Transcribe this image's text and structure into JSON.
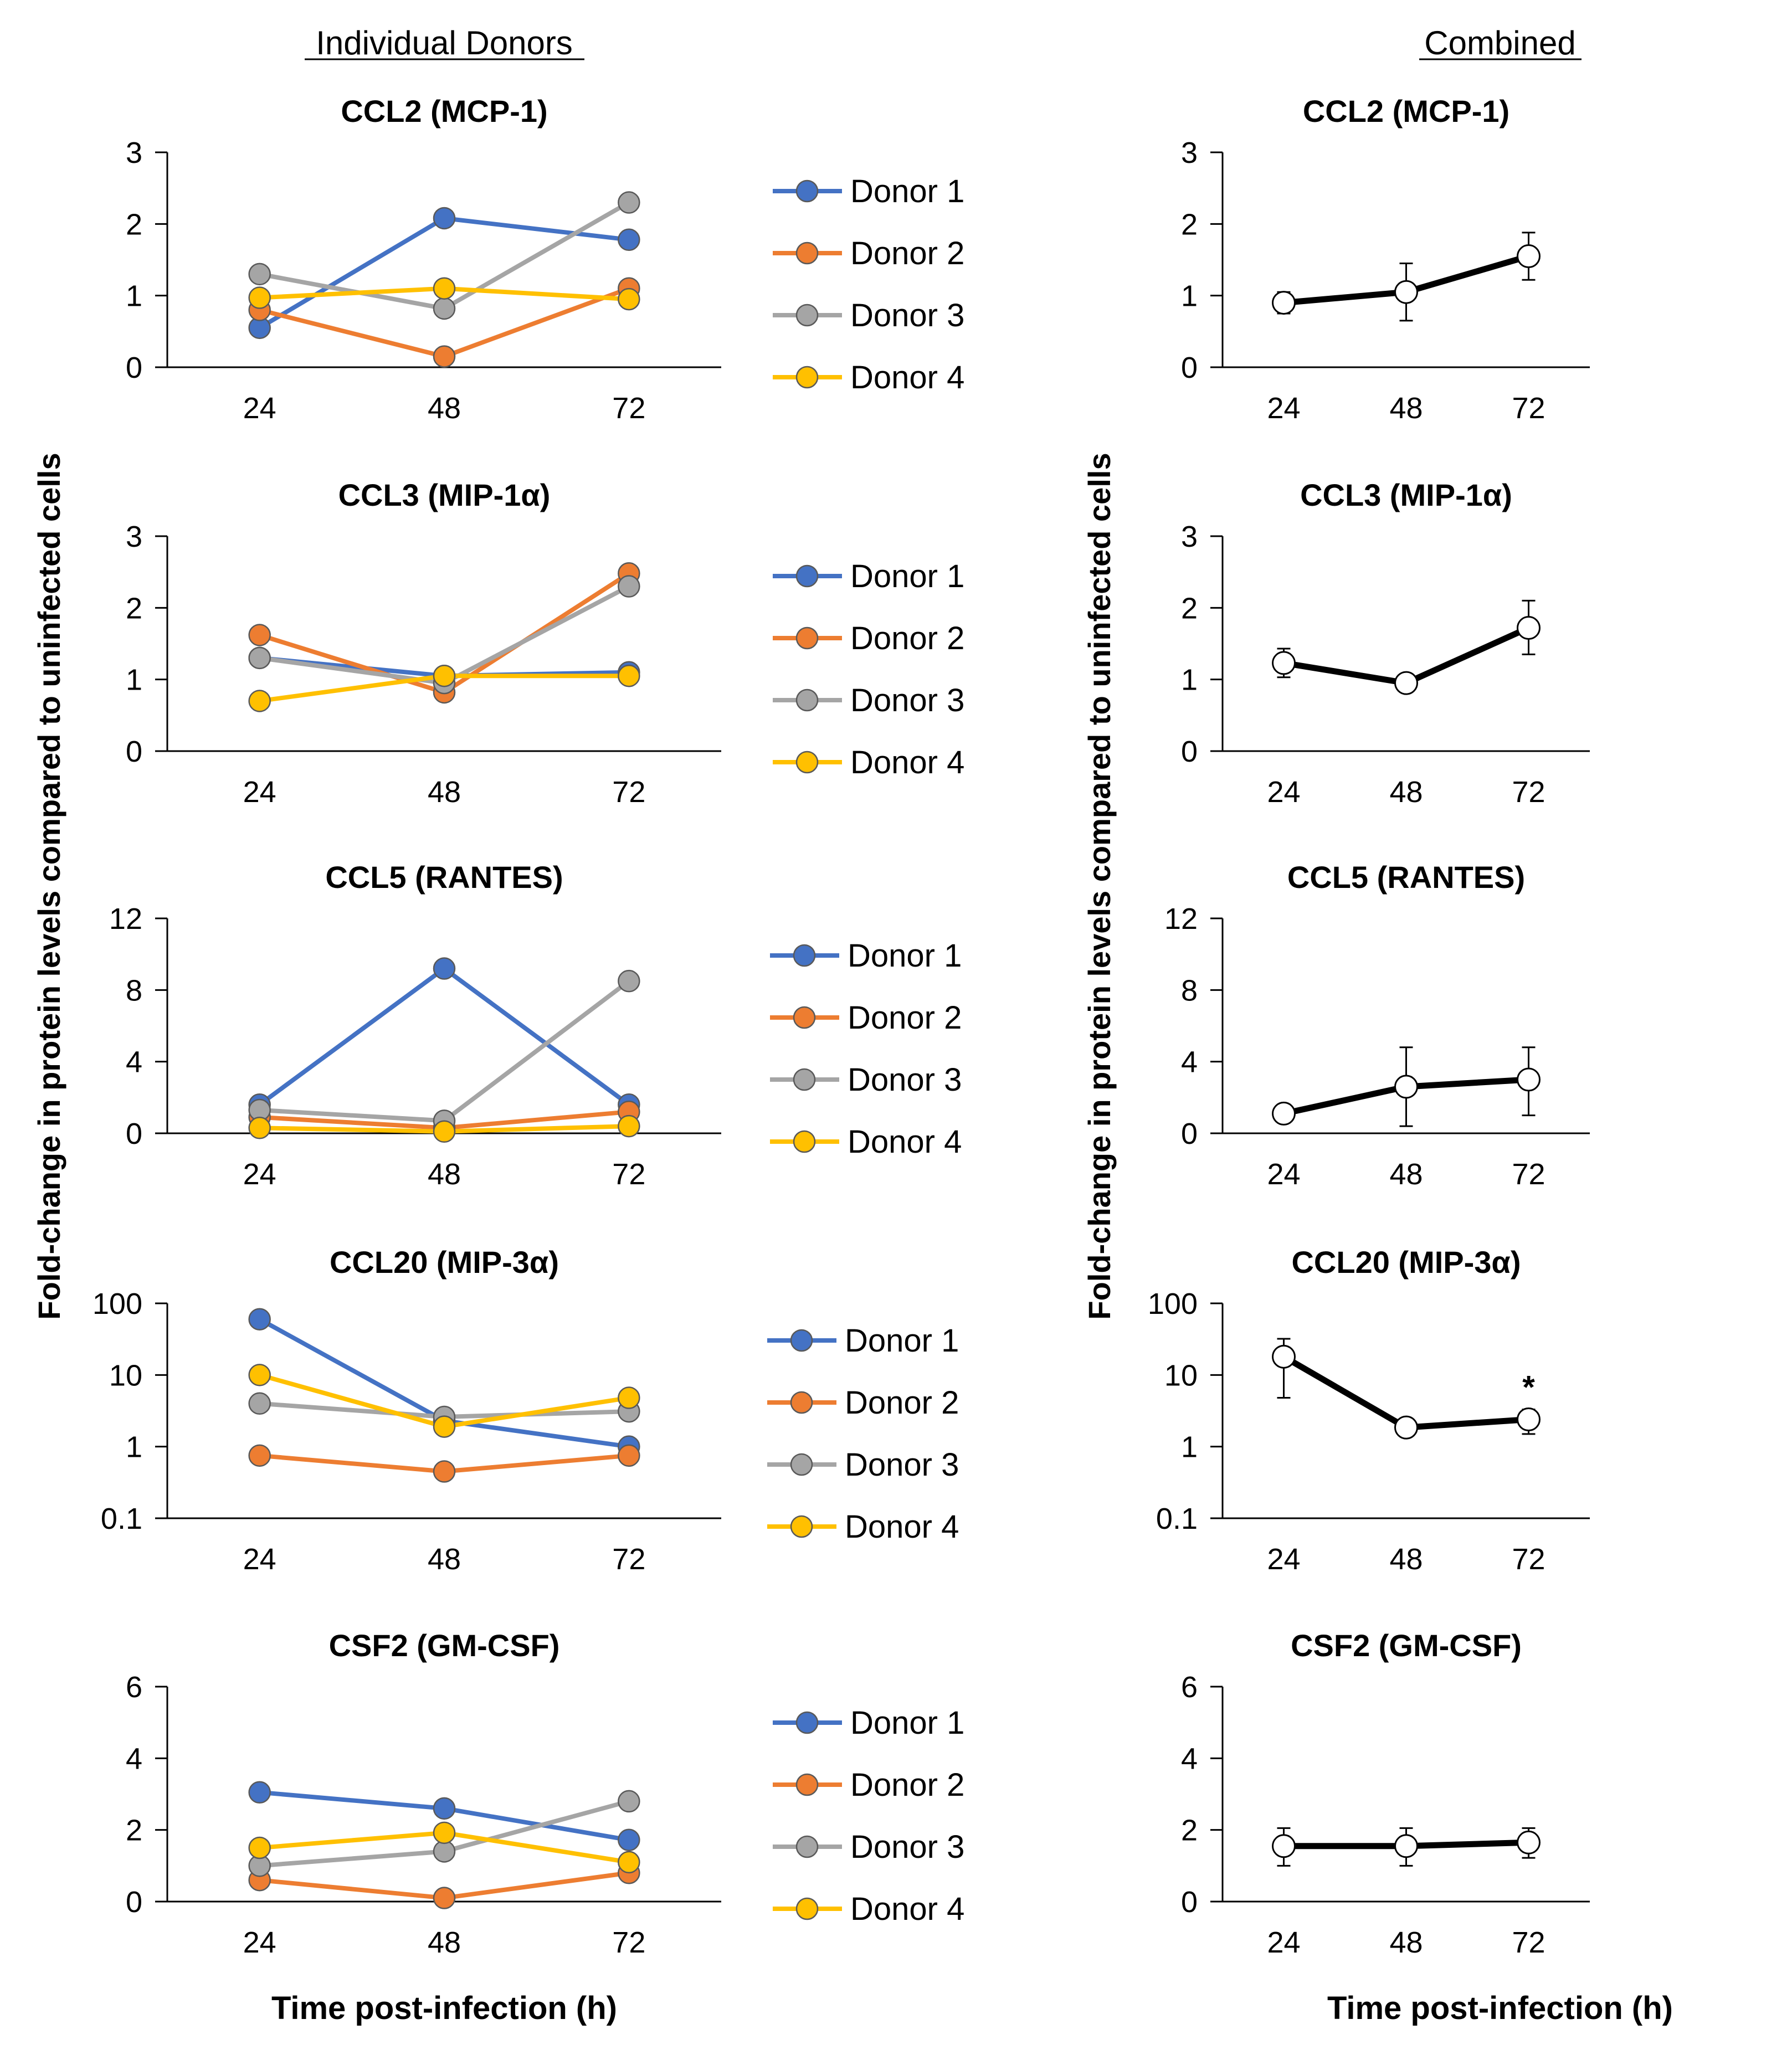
{
  "figure": {
    "left_header": "Individual Donors",
    "right_header": "Combined",
    "left_ylabel": "Fold-change in protein levels compared to uninfected cells",
    "right_ylabel": "Fold-change in protein levels compared to uninfected cells",
    "left_xlabel": "Time post-infection (h)",
    "right_xlabel": "Time post-infection (h)"
  },
  "colors": {
    "donor1": "#4472C4",
    "donor2": "#ED7D31",
    "donor3": "#A5A5A5",
    "donor4": "#FFC000",
    "combined_line": "#000000",
    "combined_marker_fill": "#ffffff",
    "axis": "#000000",
    "text": "#000000"
  },
  "chart_data": [
    {
      "type": "line",
      "panel": "individual",
      "title": "CCL2 (MCP-1)",
      "categories": [
        "24",
        "48",
        "72"
      ],
      "scale": "linear",
      "ylim": [
        0,
        3
      ],
      "yticks": [
        0,
        1,
        2,
        3
      ],
      "series": [
        {
          "name": "Donor 1",
          "values": [
            0.55,
            2.08,
            1.78
          ]
        },
        {
          "name": "Donor 2",
          "values": [
            0.8,
            0.15,
            1.1
          ]
        },
        {
          "name": "Donor 3",
          "values": [
            1.3,
            0.82,
            2.3
          ]
        },
        {
          "name": "Donor 4",
          "values": [
            0.97,
            1.1,
            0.95
          ]
        }
      ]
    },
    {
      "type": "line",
      "panel": "combined",
      "title": "CCL2 (MCP-1)",
      "categories": [
        "24",
        "48",
        "72"
      ],
      "scale": "linear",
      "ylim": [
        0,
        3
      ],
      "yticks": [
        0,
        1,
        2,
        3
      ],
      "series": [
        {
          "name": "Combined",
          "values": [
            0.9,
            1.05,
            1.55
          ],
          "err_low": [
            0.75,
            0.65,
            1.22
          ],
          "err_high": [
            1.05,
            1.45,
            1.88
          ]
        }
      ]
    },
    {
      "type": "line",
      "panel": "individual",
      "title": "CCL3 (MIP-1α)",
      "categories": [
        "24",
        "48",
        "72"
      ],
      "scale": "linear",
      "ylim": [
        0,
        3
      ],
      "yticks": [
        0,
        1,
        2,
        3
      ],
      "series": [
        {
          "name": "Donor 1",
          "values": [
            1.3,
            1.05,
            1.1
          ]
        },
        {
          "name": "Donor 2",
          "values": [
            1.62,
            0.82,
            2.48
          ]
        },
        {
          "name": "Donor 3",
          "values": [
            1.3,
            0.95,
            2.3
          ]
        },
        {
          "name": "Donor 4",
          "values": [
            0.7,
            1.05,
            1.05
          ]
        }
      ]
    },
    {
      "type": "line",
      "panel": "combined",
      "title": "CCL3 (MIP-1α)",
      "categories": [
        "24",
        "48",
        "72"
      ],
      "scale": "linear",
      "ylim": [
        0,
        3
      ],
      "yticks": [
        0,
        1,
        2,
        3
      ],
      "series": [
        {
          "name": "Combined",
          "values": [
            1.23,
            0.95,
            1.72
          ],
          "err_low": [
            1.03,
            0.88,
            1.35
          ],
          "err_high": [
            1.43,
            1.02,
            2.1
          ]
        }
      ]
    },
    {
      "type": "line",
      "panel": "individual",
      "title": "CCL5 (RANTES)",
      "categories": [
        "24",
        "48",
        "72"
      ],
      "scale": "linear",
      "ylim": [
        0,
        12
      ],
      "yticks": [
        0,
        4,
        8,
        12
      ],
      "series": [
        {
          "name": "Donor 1",
          "values": [
            1.6,
            9.2,
            1.6
          ]
        },
        {
          "name": "Donor 2",
          "values": [
            0.9,
            0.3,
            1.2
          ]
        },
        {
          "name": "Donor 3",
          "values": [
            1.3,
            0.7,
            8.5
          ]
        },
        {
          "name": "Donor 4",
          "values": [
            0.3,
            0.1,
            0.4
          ]
        }
      ]
    },
    {
      "type": "line",
      "panel": "combined",
      "title": "CCL5 (RANTES)",
      "categories": [
        "24",
        "48",
        "72"
      ],
      "scale": "linear",
      "ylim": [
        0,
        12
      ],
      "yticks": [
        0,
        4,
        8,
        12
      ],
      "series": [
        {
          "name": "Combined",
          "values": [
            1.1,
            2.6,
            3.0
          ],
          "err_low": [
            0.85,
            0.4,
            1.0
          ],
          "err_high": [
            1.35,
            4.8,
            4.8
          ]
        }
      ]
    },
    {
      "type": "line",
      "panel": "individual",
      "title": "CCL20 (MIP-3α)",
      "categories": [
        "24",
        "48",
        "72"
      ],
      "scale": "log",
      "ylim": [
        0.1,
        100
      ],
      "yticks": [
        0.1,
        1,
        10,
        100
      ],
      "ytick_labels": [
        "0.1",
        "1",
        "10",
        "100"
      ],
      "series": [
        {
          "name": "Donor 1",
          "values": [
            60,
            2.3,
            1.0
          ]
        },
        {
          "name": "Donor 2",
          "values": [
            0.75,
            0.45,
            0.75
          ]
        },
        {
          "name": "Donor 3",
          "values": [
            4.0,
            2.6,
            3.1
          ]
        },
        {
          "name": "Donor 4",
          "values": [
            10,
            1.9,
            4.8
          ]
        }
      ]
    },
    {
      "type": "line",
      "panel": "combined",
      "title": "CCL20 (MIP-3α)",
      "categories": [
        "24",
        "48",
        "72"
      ],
      "scale": "log",
      "ylim": [
        0.1,
        100
      ],
      "yticks": [
        0.1,
        1,
        10,
        100
      ],
      "ytick_labels": [
        "0.1",
        "1",
        "10",
        "100"
      ],
      "annotation": {
        "category": "72",
        "text": "*"
      },
      "series": [
        {
          "name": "Combined",
          "values": [
            18,
            1.85,
            2.4
          ],
          "err_low": [
            4.8,
            1.7,
            1.5
          ],
          "err_high": [
            32,
            2.0,
            3.3
          ]
        }
      ]
    },
    {
      "type": "line",
      "panel": "individual",
      "title": "CSF2 (GM-CSF)",
      "categories": [
        "24",
        "48",
        "72"
      ],
      "scale": "linear",
      "ylim": [
        0,
        6
      ],
      "yticks": [
        0,
        2,
        4,
        6
      ],
      "series": [
        {
          "name": "Donor 1",
          "values": [
            3.05,
            2.6,
            1.72
          ]
        },
        {
          "name": "Donor 2",
          "values": [
            0.6,
            0.1,
            0.8
          ]
        },
        {
          "name": "Donor 3",
          "values": [
            1.0,
            1.4,
            2.8
          ]
        },
        {
          "name": "Donor 4",
          "values": [
            1.5,
            1.92,
            1.1
          ]
        }
      ]
    },
    {
      "type": "line",
      "panel": "combined",
      "title": "CSF2 (GM-CSF)",
      "categories": [
        "24",
        "48",
        "72"
      ],
      "scale": "linear",
      "ylim": [
        0,
        6
      ],
      "yticks": [
        0,
        2,
        4,
        6
      ],
      "series": [
        {
          "name": "Combined",
          "values": [
            1.55,
            1.55,
            1.65
          ],
          "err_low": [
            1.0,
            1.0,
            1.22
          ],
          "err_high": [
            2.05,
            2.05,
            2.05
          ]
        }
      ]
    }
  ]
}
